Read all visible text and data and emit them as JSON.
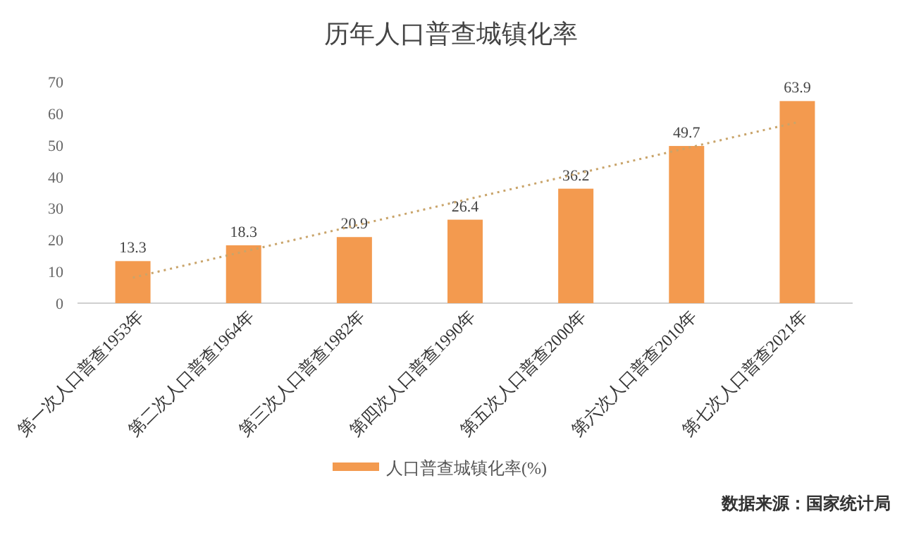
{
  "chart_data": {
    "type": "bar",
    "title": "历年人口普查城镇化率",
    "categories": [
      "第一次人口普查1953年",
      "第二次人口普查1964年",
      "第三次人口普查1982年",
      "第四次人口普查1990年",
      "第五次人口普查2000年",
      "第六次人口普查2010年",
      "第七次人口普查2021年"
    ],
    "series": [
      {
        "name": "人口普查城镇化率(%)",
        "color": "#f39a4f",
        "values": [
          13.3,
          18.3,
          20.9,
          26.4,
          36.2,
          49.7,
          63.9
        ],
        "value_labels": [
          "13.3",
          "18.3",
          "20.9",
          "26.4",
          "36.2",
          "49.7",
          "63.9"
        ]
      },
      {
        "type": "line",
        "color": "#c9a46a",
        "line_style": "dotted",
        "x": [
          "第一次人口普查1953年",
          "第七次人口普查2021年"
        ],
        "values": [
          8.1,
          57.2
        ]
      }
    ],
    "ylim": [
      0,
      70
    ],
    "yticks": [
      0,
      10,
      20,
      30,
      40,
      50,
      60,
      70
    ],
    "grid": false,
    "legend": "bottom",
    "annotations": [
      "数据来源：国家统计局"
    ]
  }
}
